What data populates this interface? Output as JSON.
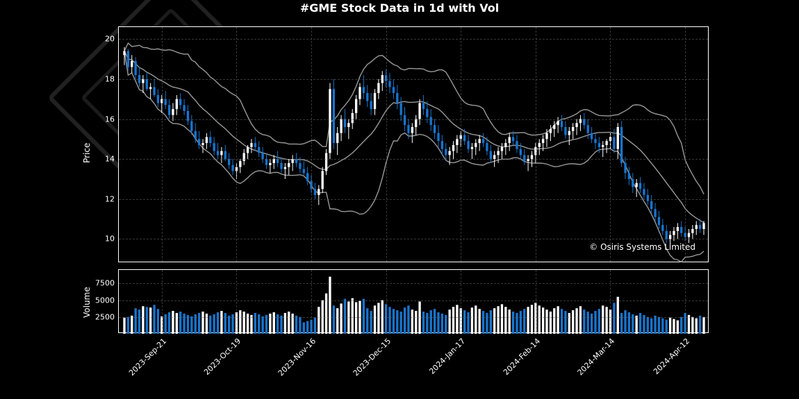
{
  "title": "#GME Stock Data in 1d with Vol",
  "copyright": "© Osiris Systems Limited",
  "background_color": "#000000",
  "text_color": "#ffffff",
  "grid_color": "#666666",
  "band_color": "#999999",
  "up_color": "#ffffff",
  "down_color": "#1874cd",
  "price_panel": {
    "ylabel": "Price",
    "ylim": [
      8.8,
      20.6
    ],
    "yticks": [
      10,
      12,
      14,
      16,
      18,
      20
    ]
  },
  "vol_panel": {
    "ylabel": "Volume",
    "ylim": [
      0,
      9500
    ],
    "yticks": [
      2500,
      5000,
      7500
    ]
  },
  "x_axis": {
    "labels": [
      "2023-Sep-21",
      "2023-Oct-19",
      "2023-Nov-16",
      "2023-Dec-15",
      "2024-Jan-17",
      "2024-Feb-14",
      "2024-Mar-14",
      "2024-Apr-12"
    ],
    "tick_indices": [
      10,
      30,
      50,
      70,
      90,
      110,
      130,
      150
    ],
    "n": 156
  },
  "ohlc": [
    [
      19.2,
      19.6,
      18.7,
      19.4
    ],
    [
      19.4,
      19.5,
      18.4,
      18.6
    ],
    [
      18.6,
      19.2,
      18.3,
      18.9
    ],
    [
      18.9,
      19.1,
      18.0,
      18.2
    ],
    [
      18.2,
      18.6,
      17.6,
      17.8
    ],
    [
      17.8,
      18.2,
      17.3,
      18.0
    ],
    [
      18.0,
      18.3,
      17.4,
      17.5
    ],
    [
      17.5,
      17.8,
      17.0,
      17.6
    ],
    [
      17.6,
      18.0,
      17.1,
      17.2
    ],
    [
      17.2,
      17.5,
      16.6,
      16.8
    ],
    [
      16.8,
      17.2,
      16.3,
      17.0
    ],
    [
      17.0,
      17.4,
      16.5,
      16.7
    ],
    [
      16.7,
      17.0,
      16.0,
      16.2
    ],
    [
      16.2,
      16.8,
      15.9,
      16.5
    ],
    [
      16.5,
      17.2,
      16.2,
      17.0
    ],
    [
      17.0,
      17.3,
      16.5,
      16.7
    ],
    [
      16.7,
      17.0,
      16.2,
      16.4
    ],
    [
      16.4,
      16.7,
      15.7,
      15.9
    ],
    [
      15.9,
      16.2,
      15.2,
      15.4
    ],
    [
      15.4,
      15.8,
      14.8,
      15.0
    ],
    [
      15.0,
      15.4,
      14.5,
      14.7
    ],
    [
      14.7,
      15.0,
      14.3,
      14.8
    ],
    [
      14.8,
      15.3,
      14.5,
      15.1
    ],
    [
      15.1,
      15.4,
      14.6,
      14.8
    ],
    [
      14.8,
      15.1,
      14.2,
      14.4
    ],
    [
      14.4,
      14.8,
      14.0,
      14.2
    ],
    [
      14.2,
      14.6,
      13.8,
      14.4
    ],
    [
      14.4,
      14.7,
      13.9,
      14.0
    ],
    [
      14.0,
      14.3,
      13.5,
      13.7
    ],
    [
      13.7,
      14.0,
      13.2,
      13.4
    ],
    [
      13.4,
      13.8,
      13.0,
      13.6
    ],
    [
      13.6,
      14.0,
      13.3,
      13.9
    ],
    [
      13.9,
      14.5,
      13.7,
      14.3
    ],
    [
      14.3,
      14.7,
      14.0,
      14.6
    ],
    [
      14.6,
      15.0,
      14.3,
      14.8
    ],
    [
      14.8,
      15.1,
      14.4,
      14.6
    ],
    [
      14.6,
      14.9,
      14.1,
      14.3
    ],
    [
      14.3,
      14.6,
      13.8,
      14.0
    ],
    [
      14.0,
      14.3,
      13.5,
      13.7
    ],
    [
      13.7,
      14.0,
      13.3,
      13.8
    ],
    [
      13.8,
      14.2,
      13.5,
      14.0
    ],
    [
      14.0,
      14.4,
      13.6,
      13.8
    ],
    [
      13.8,
      14.1,
      13.3,
      13.5
    ],
    [
      13.5,
      13.8,
      13.0,
      13.6
    ],
    [
      13.6,
      14.0,
      13.2,
      13.8
    ],
    [
      13.8,
      14.2,
      13.4,
      14.0
    ],
    [
      14.0,
      14.3,
      13.6,
      13.8
    ],
    [
      13.8,
      14.1,
      13.3,
      13.5
    ],
    [
      13.5,
      13.9,
      13.1,
      13.3
    ],
    [
      13.3,
      13.6,
      12.7,
      12.9
    ],
    [
      12.9,
      13.2,
      12.3,
      12.5
    ],
    [
      12.5,
      12.8,
      12.0,
      12.2
    ],
    [
      12.2,
      12.7,
      11.7,
      12.5
    ],
    [
      12.5,
      13.6,
      12.3,
      13.4
    ],
    [
      13.4,
      14.5,
      13.2,
      14.3
    ],
    [
      14.3,
      17.8,
      14.0,
      17.5
    ],
    [
      17.5,
      18.0,
      14.5,
      14.8
    ],
    [
      14.8,
      15.6,
      14.2,
      15.3
    ],
    [
      15.3,
      16.2,
      14.9,
      16.0
    ],
    [
      16.0,
      16.5,
      15.3,
      15.6
    ],
    [
      15.6,
      16.0,
      15.0,
      15.8
    ],
    [
      15.8,
      16.5,
      15.5,
      16.3
    ],
    [
      16.3,
      17.2,
      16.0,
      17.0
    ],
    [
      17.0,
      17.8,
      16.7,
      17.6
    ],
    [
      17.6,
      18.2,
      17.0,
      17.3
    ],
    [
      17.3,
      17.7,
      16.6,
      16.9
    ],
    [
      16.9,
      17.3,
      16.2,
      16.5
    ],
    [
      16.5,
      17.5,
      16.2,
      17.3
    ],
    [
      17.3,
      18.0,
      17.0,
      17.8
    ],
    [
      17.8,
      18.4,
      17.4,
      18.2
    ],
    [
      18.2,
      18.5,
      17.6,
      17.9
    ],
    [
      17.9,
      18.3,
      17.3,
      17.6
    ],
    [
      17.6,
      18.0,
      17.0,
      17.3
    ],
    [
      17.3,
      17.7,
      16.5,
      16.8
    ],
    [
      16.8,
      17.1,
      15.9,
      16.2
    ],
    [
      16.2,
      16.6,
      15.4,
      15.7
    ],
    [
      15.7,
      16.0,
      15.0,
      15.3
    ],
    [
      15.3,
      15.8,
      14.8,
      15.6
    ],
    [
      15.6,
      16.2,
      15.2,
      16.0
    ],
    [
      16.0,
      17.0,
      15.7,
      16.8
    ],
    [
      16.8,
      17.2,
      16.2,
      16.5
    ],
    [
      16.5,
      16.9,
      15.8,
      16.1
    ],
    [
      16.1,
      16.5,
      15.4,
      15.7
    ],
    [
      15.7,
      16.0,
      15.0,
      15.3
    ],
    [
      15.3,
      15.7,
      14.6,
      14.9
    ],
    [
      14.9,
      15.2,
      14.2,
      14.5
    ],
    [
      14.5,
      14.8,
      13.9,
      14.2
    ],
    [
      14.2,
      14.6,
      13.7,
      14.4
    ],
    [
      14.4,
      14.9,
      14.0,
      14.7
    ],
    [
      14.7,
      15.2,
      14.3,
      15.0
    ],
    [
      15.0,
      15.4,
      14.6,
      15.2
    ],
    [
      15.2,
      15.5,
      14.7,
      14.9
    ],
    [
      14.9,
      15.2,
      14.3,
      14.5
    ],
    [
      14.5,
      14.8,
      14.0,
      14.6
    ],
    [
      14.6,
      15.0,
      14.2,
      14.8
    ],
    [
      14.8,
      15.2,
      14.4,
      15.0
    ],
    [
      15.0,
      15.3,
      14.6,
      14.8
    ],
    [
      14.8,
      15.1,
      14.2,
      14.4
    ],
    [
      14.4,
      14.7,
      13.8,
      14.0
    ],
    [
      14.0,
      14.4,
      13.6,
      14.2
    ],
    [
      14.2,
      14.6,
      13.8,
      14.4
    ],
    [
      14.4,
      14.8,
      14.0,
      14.6
    ],
    [
      14.6,
      15.0,
      14.2,
      14.8
    ],
    [
      14.8,
      15.3,
      14.4,
      15.1
    ],
    [
      15.1,
      15.4,
      14.7,
      14.9
    ],
    [
      14.9,
      15.2,
      14.3,
      14.5
    ],
    [
      14.5,
      14.8,
      14.0,
      14.2
    ],
    [
      14.2,
      14.5,
      13.7,
      13.9
    ],
    [
      13.9,
      14.2,
      13.4,
      14.0
    ],
    [
      14.0,
      14.4,
      13.6,
      14.2
    ],
    [
      14.2,
      14.8,
      13.8,
      14.6
    ],
    [
      14.6,
      15.0,
      14.2,
      14.8
    ],
    [
      14.8,
      15.2,
      14.4,
      15.0
    ],
    [
      15.0,
      15.5,
      14.6,
      15.3
    ],
    [
      15.3,
      15.7,
      14.9,
      15.5
    ],
    [
      15.5,
      15.9,
      15.1,
      15.7
    ],
    [
      15.7,
      16.1,
      15.3,
      15.9
    ],
    [
      15.9,
      16.2,
      15.4,
      15.6
    ],
    [
      15.6,
      15.9,
      15.0,
      15.2
    ],
    [
      15.2,
      15.6,
      14.7,
      15.4
    ],
    [
      15.4,
      15.8,
      15.0,
      15.6
    ],
    [
      15.6,
      16.0,
      15.2,
      15.8
    ],
    [
      15.8,
      16.2,
      15.4,
      16.0
    ],
    [
      16.0,
      16.3,
      15.5,
      15.7
    ],
    [
      15.7,
      16.0,
      15.0,
      15.3
    ],
    [
      15.3,
      15.6,
      14.8,
      15.0
    ],
    [
      15.0,
      15.3,
      14.5,
      14.8
    ],
    [
      14.8,
      15.1,
      14.3,
      14.6
    ],
    [
      14.6,
      14.9,
      14.1,
      14.7
    ],
    [
      14.7,
      15.0,
      14.3,
      14.9
    ],
    [
      14.9,
      15.3,
      14.5,
      15.1
    ],
    [
      15.1,
      15.5,
      14.3,
      14.5
    ],
    [
      14.5,
      15.8,
      14.0,
      15.6
    ],
    [
      15.6,
      15.9,
      13.6,
      13.8
    ],
    [
      13.8,
      14.1,
      13.0,
      13.3
    ],
    [
      13.3,
      13.6,
      12.7,
      13.0
    ],
    [
      13.0,
      13.3,
      12.3,
      12.6
    ],
    [
      12.6,
      13.0,
      12.1,
      12.8
    ],
    [
      12.8,
      13.1,
      12.3,
      12.5
    ],
    [
      12.5,
      12.8,
      12.0,
      12.2
    ],
    [
      12.2,
      12.5,
      11.7,
      11.9
    ],
    [
      11.9,
      12.2,
      11.3,
      11.5
    ],
    [
      11.5,
      11.8,
      10.9,
      11.1
    ],
    [
      11.1,
      11.4,
      10.5,
      10.7
    ],
    [
      10.7,
      11.0,
      10.2,
      10.4
    ],
    [
      10.4,
      10.7,
      9.8,
      10.0
    ],
    [
      10.0,
      10.4,
      9.6,
      10.2
    ],
    [
      10.2,
      10.6,
      9.9,
      10.4
    ],
    [
      10.4,
      10.8,
      10.0,
      10.6
    ],
    [
      10.6,
      10.9,
      10.1,
      10.3
    ],
    [
      10.3,
      10.6,
      9.9,
      10.1
    ],
    [
      10.1,
      10.5,
      9.8,
      10.3
    ],
    [
      10.3,
      10.7,
      10.0,
      10.5
    ],
    [
      10.5,
      10.9,
      10.2,
      10.7
    ],
    [
      10.7,
      11.0,
      10.3,
      10.5
    ],
    [
      10.5,
      10.9,
      10.2,
      10.8
    ]
  ],
  "volume": [
    2400,
    2500,
    2700,
    3800,
    3600,
    4100,
    4000,
    3900,
    4300,
    3700,
    2600,
    2900,
    3200,
    3400,
    3100,
    3300,
    3000,
    2800,
    2600,
    2900,
    3100,
    3300,
    3000,
    2700,
    2900,
    3200,
    3400,
    3100,
    2700,
    2900,
    3200,
    3500,
    3300,
    3000,
    2800,
    3100,
    2900,
    2600,
    2800,
    3000,
    3200,
    2900,
    2700,
    3100,
    3300,
    3000,
    2700,
    2500,
    1700,
    1900,
    2100,
    2400,
    4000,
    5000,
    6000,
    8500,
    4200,
    3800,
    4500,
    5200,
    4800,
    5300,
    4700,
    4900,
    5200,
    3800,
    3400,
    4200,
    4600,
    5000,
    4400,
    4000,
    3700,
    3500,
    3300,
    3900,
    4200,
    3600,
    3400,
    4800,
    3300,
    3100,
    3500,
    3700,
    3200,
    3000,
    2800,
    3600,
    4000,
    4300,
    3800,
    3500,
    3200,
    3900,
    4200,
    3700,
    3400,
    3100,
    3500,
    3800,
    4100,
    4400,
    4000,
    3600,
    3300,
    3100,
    3400,
    3700,
    4000,
    4300,
    4600,
    4200,
    3900,
    3600,
    3300,
    3800,
    4100,
    3700,
    3400,
    3100,
    3500,
    3800,
    4100,
    3600,
    3300,
    3000,
    3400,
    3700,
    4200,
    4000,
    3600,
    4600,
    5500,
    3100,
    3500,
    3200,
    2900,
    2700,
    3100,
    2800,
    2500,
    2300,
    2700,
    2500,
    2300,
    2100,
    2400,
    2200,
    2000,
    2500,
    3100,
    2800,
    2500,
    2300,
    2700,
    2500
  ]
}
